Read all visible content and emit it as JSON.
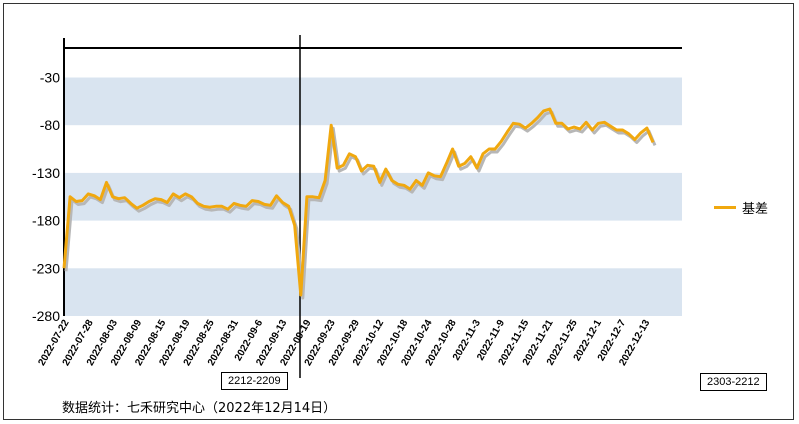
{
  "chart_data": {
    "type": "line",
    "title": "",
    "xlabel": "",
    "ylabel": "",
    "ylim": [
      -280,
      -10
    ],
    "yticks": [
      -30,
      -80,
      -130,
      -180,
      -230,
      -280
    ],
    "grid": "horizontal alternating bands",
    "legend_position": "right",
    "x_tick_labels": [
      "2022-07-22",
      "2022-07-28",
      "2022-08-03",
      "2022-08-09",
      "2022-08-15",
      "2022-08-19",
      "2022-08-25",
      "2022-08-31",
      "2022-09-6",
      "2022-09-13",
      "2022-09-19",
      "2022-09-23",
      "2022-09-29",
      "2022-10-12",
      "2022-10-18",
      "2022-10-24",
      "2022-10-28",
      "2022-11-3",
      "2022-11-9",
      "2022-11-15",
      "2022-11-21",
      "2022-11-25",
      "2022-12-1",
      "2022-12-7",
      "2022-12-13"
    ],
    "series": [
      {
        "name": "基差",
        "color": "#f0a80f",
        "values": [
          -230,
          -155,
          -160,
          -159,
          -152,
          -154,
          -158,
          -140,
          -155,
          -157,
          -156,
          -162,
          -167,
          -164,
          -160,
          -157,
          -158,
          -161,
          -152,
          -156,
          -152,
          -155,
          -162,
          -165,
          -166,
          -165,
          -165,
          -168,
          -162,
          -164,
          -165,
          -159,
          -160,
          -163,
          -164,
          -154,
          -161,
          -165,
          -185,
          -258,
          -155,
          -155,
          -156,
          -138,
          -80,
          -125,
          -122,
          -110,
          -113,
          -128,
          -122,
          -123,
          -140,
          -126,
          -138,
          -142,
          -143,
          -147,
          -138,
          -143,
          -130,
          -133,
          -134,
          -120,
          -105,
          -123,
          -120,
          -113,
          -125,
          -110,
          -105,
          -105,
          -97,
          -87,
          -78,
          -79,
          -83,
          -78,
          -72,
          -65,
          -63,
          -78,
          -78,
          -84,
          -82,
          -84,
          -77,
          -85,
          -78,
          -77,
          -81,
          -85,
          -85,
          -89,
          -95,
          -88,
          -83,
          -98
        ]
      }
    ],
    "annotations": [
      "2212-2209",
      "2303-2212"
    ]
  },
  "legend": {
    "label": "基差"
  },
  "labels": {
    "left_box": "2212-2209",
    "right_box": "2303-2212"
  },
  "source_text": "数据统计：七禾研究中心（2022年12月14日）"
}
